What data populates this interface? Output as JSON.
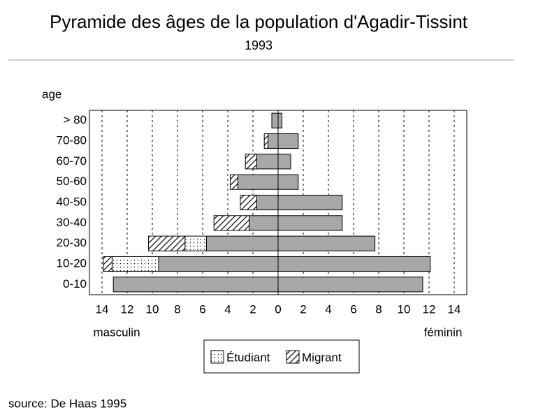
{
  "chart_data": {
    "type": "pyramid",
    "title": "Pyramide des âges de la population d'Agadir-Tissint",
    "subtitle": "1993",
    "y_label": "age",
    "left_label": "masculin",
    "right_label": "féminin",
    "source": "source: De Haas 1995",
    "categories": [
      "0-10",
      "10-20",
      "20-30",
      "30-40",
      "40-50",
      "50-60",
      "60-70",
      "70-80",
      "> 80"
    ],
    "series": [
      {
        "color": "#a8a8a8",
        "values": [
          -13.1,
          -9.5,
          -5.7,
          -2.3,
          -1.7,
          -3.2,
          -1.7,
          -0.8,
          -0.5
        ]
      },
      {
        "name": "Étudiant",
        "pattern": "dots",
        "values": [
          0,
          -3.7,
          -1.7,
          0,
          0,
          0,
          0,
          0,
          0
        ]
      },
      {
        "name": "Migrant",
        "pattern": "hatch",
        "values": [
          0,
          -0.7,
          -2.9,
          -2.8,
          -1.3,
          -0.6,
          -0.9,
          -0.3,
          0
        ]
      },
      {
        "color": "#a8a8a8",
        "values": [
          11.5,
          12.1,
          7.7,
          5.1,
          5.1,
          1.6,
          1.0,
          1.6,
          0.3
        ]
      }
    ],
    "xlim": [
      -15,
      15
    ],
    "xticks": [
      {
        "value": -14,
        "label": "14"
      },
      {
        "value": -12,
        "label": "12"
      },
      {
        "value": -10,
        "label": "10"
      },
      {
        "value": -8,
        "label": "8"
      },
      {
        "value": -6,
        "label": "6"
      },
      {
        "value": -4,
        "label": "4"
      },
      {
        "value": -2,
        "label": "2"
      },
      0,
      2,
      4,
      6,
      8,
      10,
      12,
      14
    ],
    "grid": true
  }
}
